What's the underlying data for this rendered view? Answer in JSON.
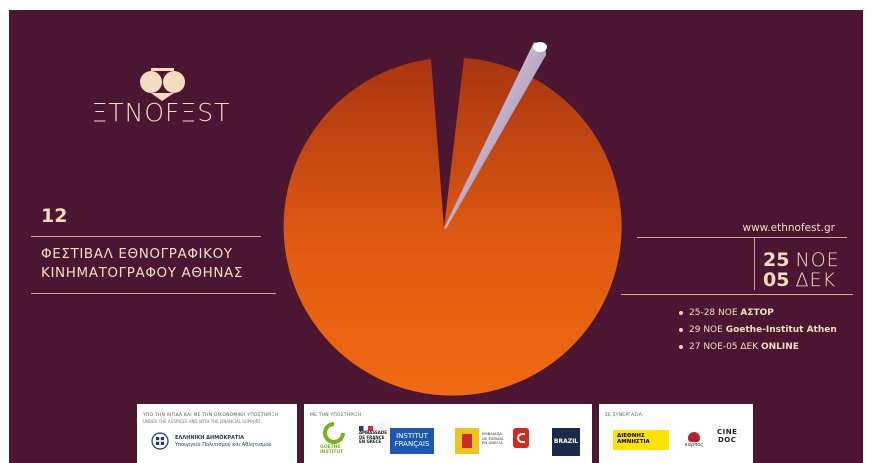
{
  "festival": {
    "logo_text": "ΞΤΝΟFΞST",
    "edition": "12",
    "title_line1": "ΦΕΣΤΙΒΑΛ ΕΘΝΟΓΡΑΦΙΚΟΥ",
    "title_line2": "ΚΙΝΗΜΑΤΟΓΡΑΦΟΥ ΑΘΗΝΑΣ",
    "website": "www.ethnofest.gr"
  },
  "dates": {
    "start_day": "25",
    "start_month": "ΝΟΕ",
    "end_day": "05",
    "end_month": "ΔΕΚ"
  },
  "venues": [
    {
      "date": "25-28 ΝΟΕ",
      "place": "ΑΣΤΟΡ"
    },
    {
      "date": "29 ΝΟΕ",
      "place": "Goethe-Institut Athen"
    },
    {
      "date": "27 ΝΟΕ-05 ΔΕΚ",
      "place": "ONLINE"
    }
  ],
  "colors": {
    "background": "#4a1632",
    "cream": "#f3dcc0",
    "pie_light": "#f06a12",
    "pie_dark": "#a8350f"
  },
  "sponsors": {
    "auspices": {
      "label": "ΥΠΟ ΤΗΝ ΑΙΓΙΔΑ ΚΑΙ ΜΕ ΤΗΝ ΟΙΚΟΝΟΜΙΚΗ ΥΠΟΣΤΗΡΙΞΗ",
      "label_en": "UNDER THE AUSPICES AND WITH THE FINANCIAL SUPPORT",
      "org_line1": "ΕΛΛΗΝΙΚΗ ΔΗΜΟΚΡΑΤΙΑ",
      "org_line2": "Υπουργείο Πολιτισμού και Αθλητισμού"
    },
    "support": {
      "label": "ΜΕ ΤΗΝ ΥΠΟΣΤΗΡΙΞΗ",
      "goethe_line1": "GOETHE",
      "goethe_line2": "INSTITUT",
      "ambassade_line1": "AMBASSADE",
      "ambassade_line2": "DE FRANCE",
      "ambassade_line3": "EN GRÈCE",
      "institut_line1": "INSTITUT",
      "institut_line2": "FRANÇAIS",
      "embajada_line1": "EMBAJADA",
      "embajada_line2": "DE ESPAÑA",
      "embajada_line3": "EN GRECIA",
      "brazil": "BRAZIL"
    },
    "cooperation": {
      "label": "ΣΕ ΣΥΝΕΡΓΑΣΙΑ",
      "amnesty_line1": "ΔΙΕΘΝΗΣ",
      "amnesty_line2": "ΑΜΝΗΣΤΙΑ",
      "karpos": "καρπός",
      "cinedoc_line1": "CINE",
      "cinedoc_line2": "DOC"
    }
  }
}
